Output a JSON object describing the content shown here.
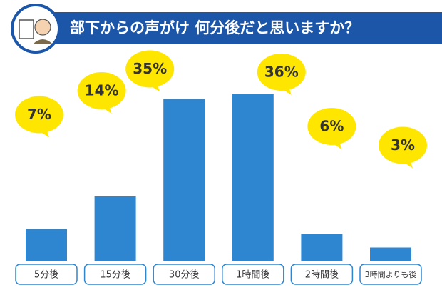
{
  "chart_data": {
    "type": "bar",
    "title": "部下からの声がけ 何分後だと思いますか？",
    "categories": [
      "5分後",
      "15分後",
      "30分後",
      "1時間後",
      "2時間後",
      "3時間よりも後"
    ],
    "values": [
      7,
      14,
      35,
      36,
      6,
      3
    ],
    "value_labels": [
      "7%",
      "14%",
      "35%",
      "36%",
      "6%",
      "3%"
    ],
    "color": "#2f86d0"
  }
}
